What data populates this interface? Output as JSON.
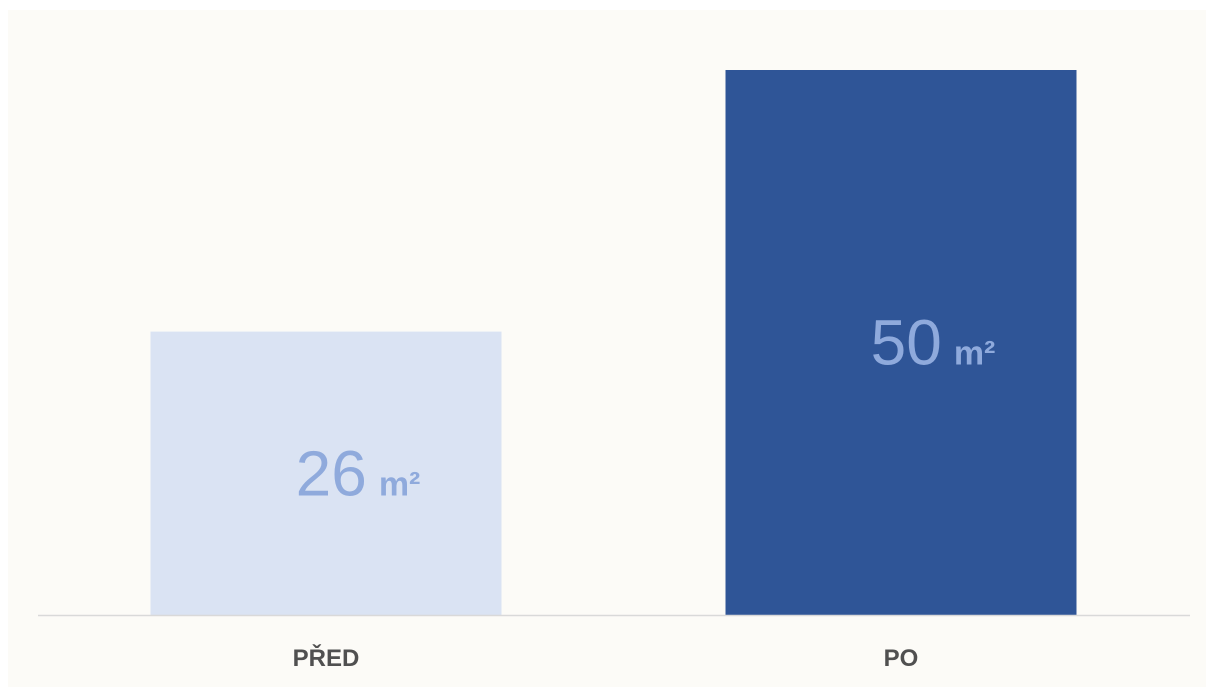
{
  "chart_data": {
    "type": "bar",
    "title": "",
    "xlabel": "",
    "ylabel": "",
    "categories": [
      "PŘED",
      "PO"
    ],
    "values": [
      26,
      50
    ],
    "unit": "m²",
    "value_labels": [
      "26",
      "50"
    ],
    "ylim": [
      0,
      50
    ],
    "grid": false,
    "legend": "none",
    "bar_colors": [
      "#dae3f3",
      "#2f5597"
    ],
    "label_color": "#8faadc",
    "category_label_color": "#505050",
    "axis_color": "#d9d9d9",
    "background": "#fcfbf7"
  }
}
